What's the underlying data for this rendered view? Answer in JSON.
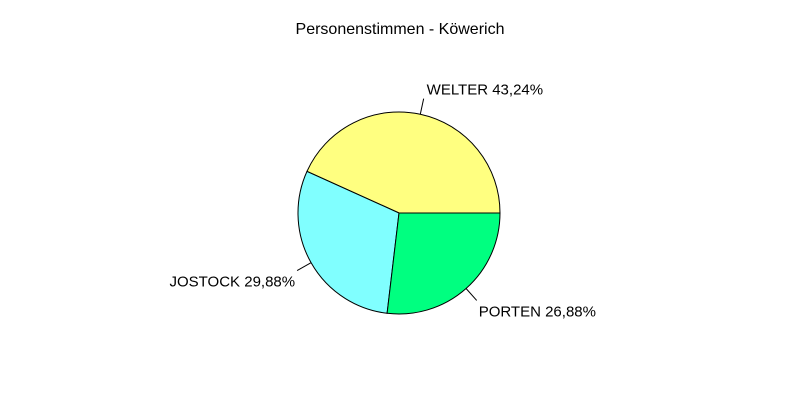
{
  "chart_data": {
    "type": "pie",
    "title": "Personenstimmen - Köwerich",
    "slices": [
      {
        "label": "WELTER",
        "value": 43.24,
        "value_text": "43,24%",
        "color": "#FFFF80"
      },
      {
        "label": "JOSTOCK",
        "value": 29.88,
        "value_text": "29,88%",
        "color": "#80FFFF"
      },
      {
        "label": "PORTEN",
        "value": 26.88,
        "value_text": "26,88%",
        "color": "#00FF80"
      }
    ],
    "start_angle_deg": 0,
    "direction": "counterclockwise",
    "legend": "none",
    "grid": false
  }
}
